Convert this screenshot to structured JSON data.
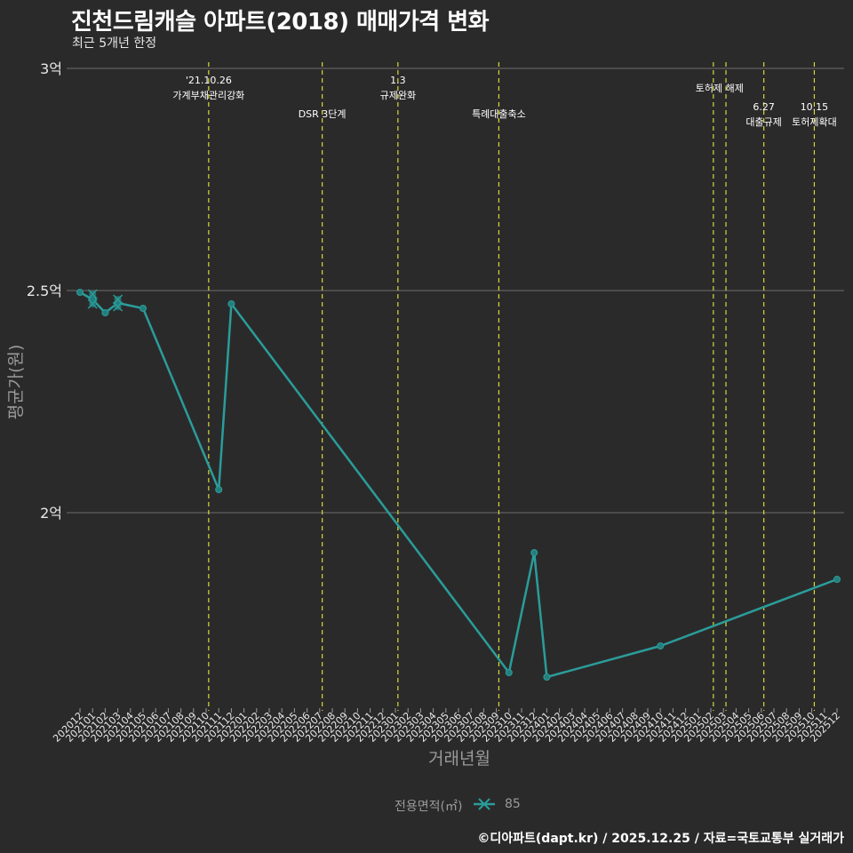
{
  "header": {
    "title": "진천드림캐슬 아파트(2018) 매매가격 변화",
    "subtitle": "최근 5개년 한정"
  },
  "legend": {
    "title": "전용면적(㎡)",
    "entries": [
      {
        "label": "85",
        "color": "#2a9d9a"
      }
    ]
  },
  "footer": {
    "credit": "©디아파트(dapt.kr) / 2025.12.25 / 자료=국토교통부 실거래가"
  },
  "colors": {
    "background": "#2b2a2b",
    "gridline": "#6e6e6e",
    "series": "#2a9d9a",
    "event_line": "#d4d93a"
  },
  "chart_data": {
    "type": "line",
    "title": "진천드림캐슬 아파트(2018) 매매가격 변화",
    "subtitle": "최근 5개년 한정",
    "xlabel": "거래년월",
    "ylabel": "평균가(원)",
    "ylim": [
      1.6,
      3.0
    ],
    "y_ticks": [
      {
        "value": 2.0,
        "label": "2억"
      },
      {
        "value": 2.5,
        "label": "2.5억"
      },
      {
        "value": 3.0,
        "label": "3억"
      }
    ],
    "y_unit": "억원",
    "categories": [
      "202012",
      "202101",
      "202102",
      "202103",
      "202104",
      "202105",
      "202106",
      "202107",
      "202108",
      "202109",
      "202110",
      "202111",
      "202112",
      "202201",
      "202202",
      "202203",
      "202204",
      "202205",
      "202206",
      "202207",
      "202208",
      "202209",
      "202210",
      "202211",
      "202212",
      "202301",
      "202302",
      "202303",
      "202304",
      "202305",
      "202306",
      "202307",
      "202308",
      "202309",
      "202310",
      "202311",
      "202312",
      "202401",
      "202402",
      "202403",
      "202404",
      "202405",
      "202406",
      "202407",
      "202408",
      "202409",
      "202410",
      "202411",
      "202412",
      "202501",
      "202502",
      "202503",
      "202504",
      "202505",
      "202506",
      "202507",
      "202508",
      "202509",
      "202510",
      "202511",
      "202512"
    ],
    "grid": true,
    "legend_position": "bottom",
    "series": [
      {
        "name": "85",
        "points": [
          {
            "x": "202012",
            "y": 2.496
          },
          {
            "x": "202101",
            "y": 2.48
          },
          {
            "x": "202102",
            "y": 2.45
          },
          {
            "x": "202103",
            "y": 2.472
          },
          {
            "x": "202105",
            "y": 2.46
          },
          {
            "x": "202111",
            "y": 2.052
          },
          {
            "x": "202112",
            "y": 2.47
          },
          {
            "x": "202310",
            "y": 1.64
          },
          {
            "x": "202312",
            "y": 1.91
          },
          {
            "x": "202401",
            "y": 1.63
          },
          {
            "x": "202410",
            "y": 1.7
          },
          {
            "x": "202512",
            "y": 1.85
          }
        ],
        "individual_trades": [
          {
            "x": "202101",
            "y": 2.492
          },
          {
            "x": "202101",
            "y": 2.47
          },
          {
            "x": "202103",
            "y": 2.48
          },
          {
            "x": "202103",
            "y": 2.464
          }
        ]
      }
    ],
    "events": [
      {
        "x_index": 10.2,
        "line1": "'21.10.26",
        "line2": "가계부채관리강화",
        "row": 1
      },
      {
        "x_index": 19.2,
        "line1": "",
        "line2": "DSR 3단계",
        "row": 2
      },
      {
        "x_index": 25.2,
        "line1": "1.3",
        "line2": "규제완화",
        "row": 1
      },
      {
        "x_index": 33.2,
        "line1": "",
        "line2": "특례대출축소",
        "row": 2
      },
      {
        "x_index": 50.2,
        "line1": "",
        "line2": "토허제 해제",
        "row": 1.5
      },
      {
        "x_index": 51.2,
        "line1": "",
        "line2": "",
        "row": 0
      },
      {
        "x_index": 54.2,
        "line1": "6.27",
        "line2": "대출규제",
        "row": 2
      },
      {
        "x_index": 58.2,
        "line1": "10.15",
        "line2": "토허제확대",
        "row": 2
      }
    ]
  }
}
